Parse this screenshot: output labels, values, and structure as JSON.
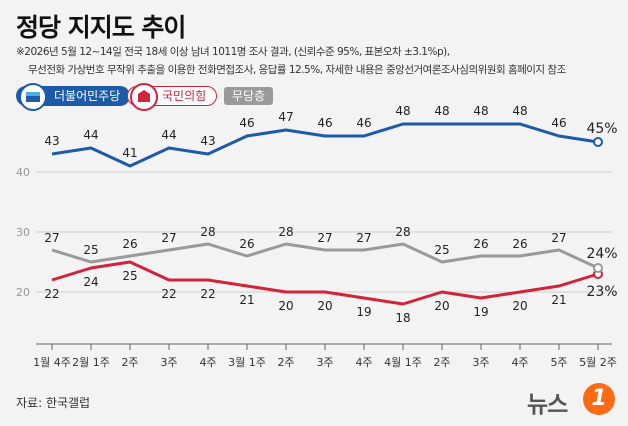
{
  "title": "정당 지지도 추이",
  "notes": [
    "※2026년 5월 12~14일 전국 18세 이상 남녀 1011명 조사 결과, (신뢰수준 95%, 표본오차 ±3.1%p),",
    "무선전화 가상번호 무작위 추출을 이용한 전화면접조사, 응답률 12.5%, 자세한 내용은 중앙선거여론조사심의위원회 홈페이지 참조"
  ],
  "source": "자료: 한국갤럽",
  "logo": {
    "text": "뉴스",
    "badge": "1"
  },
  "colors": {
    "dem": "#1d5aa8",
    "ppp": "#d0243a",
    "ind": "#9a9a9a"
  },
  "chart_data": {
    "type": "line",
    "categories": [
      "1월 4주",
      "2월 1주",
      "2주",
      "3주",
      "4주",
      "3월 1주",
      "2주",
      "3주",
      "4주",
      "4월 1주",
      "2주",
      "3주",
      "4주",
      "5주",
      "5월 2주"
    ],
    "y_ticks": [
      20,
      30,
      40
    ],
    "ylim": [
      14,
      50
    ],
    "grid": true,
    "series": [
      {
        "name": "더불어민주당",
        "key": "dem",
        "values": [
          43,
          44,
          41,
          44,
          43,
          46,
          47,
          46,
          46,
          48,
          48,
          48,
          48,
          46,
          45
        ],
        "last_label": "45%"
      },
      {
        "name": "국민의힘",
        "key": "ppp",
        "values": [
          22,
          24,
          25,
          22,
          22,
          21,
          20,
          20,
          19,
          18,
          20,
          19,
          20,
          21,
          23
        ],
        "last_label": "23%"
      },
      {
        "name": "무당층",
        "key": "ind",
        "values": [
          27,
          25,
          26,
          27,
          28,
          26,
          28,
          27,
          27,
          28,
          25,
          26,
          26,
          27,
          24
        ],
        "last_label": "24%"
      }
    ]
  }
}
